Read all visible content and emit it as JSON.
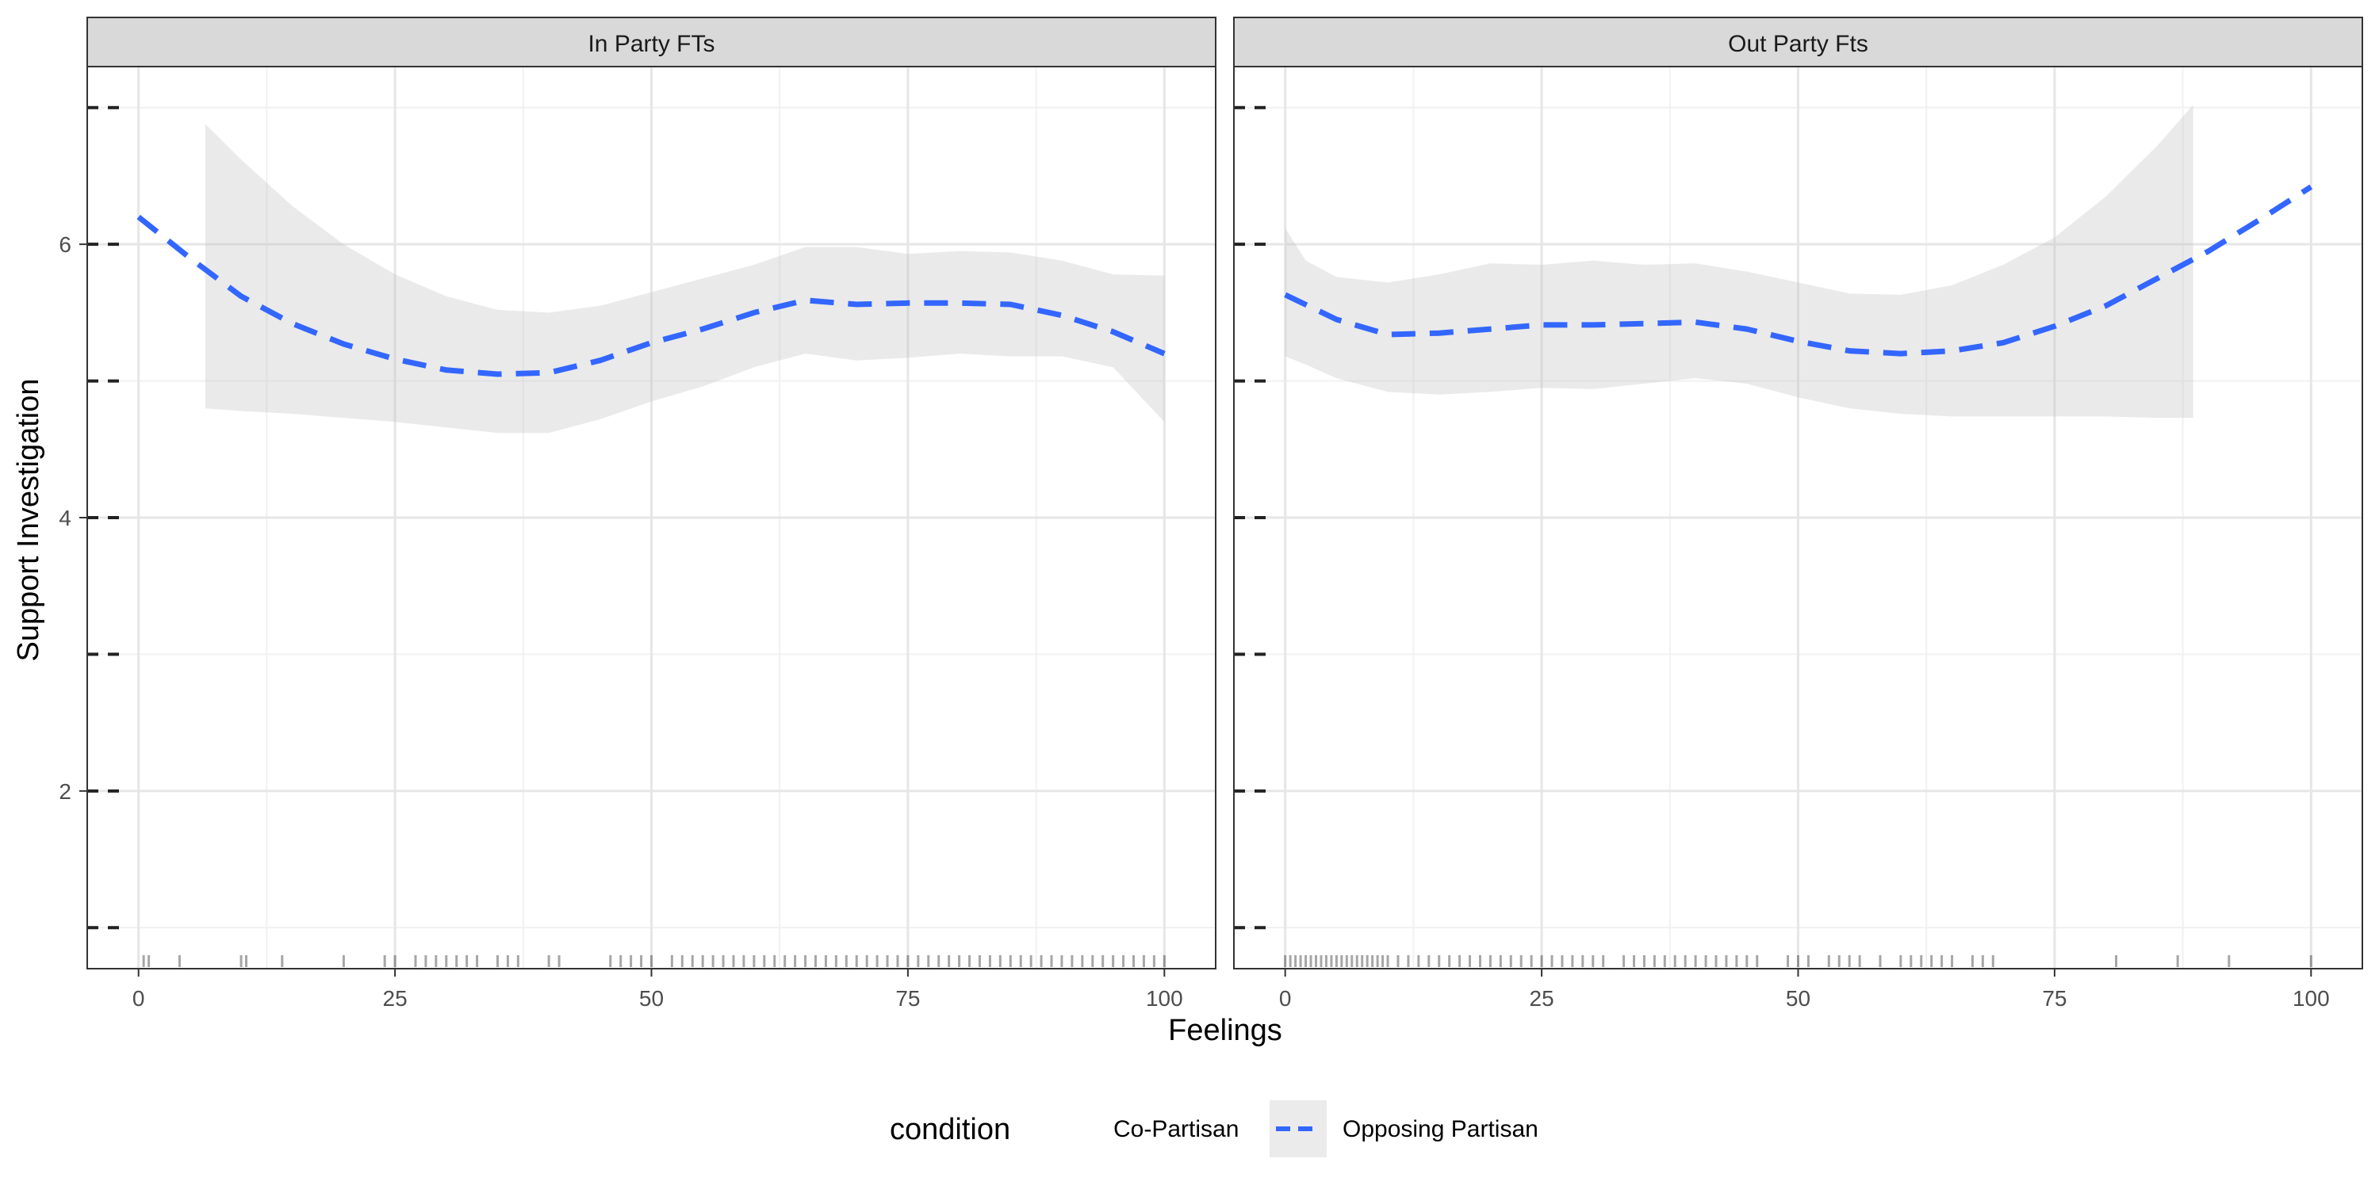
{
  "chart_data": {
    "type": "line",
    "panels": [
      {
        "strip_label": "In Party FTs",
        "series": [
          {
            "name": "Opposing Partisan",
            "color": "#3366FF",
            "line_style": "dashed",
            "x": [
              0,
              5,
              10,
              15,
              20,
              25,
              30,
              35,
              40,
              45,
              50,
              55,
              60,
              65,
              70,
              75,
              80,
              85,
              90,
              95,
              100
            ],
            "y": [
              6.2,
              5.9,
              5.62,
              5.42,
              5.27,
              5.16,
              5.08,
              5.05,
              5.06,
              5.15,
              5.28,
              5.38,
              5.5,
              5.59,
              5.56,
              5.57,
              5.57,
              5.56,
              5.48,
              5.36,
              5.2
            ]
          }
        ],
        "ribbon": {
          "x": [
            6.5,
            10,
            15,
            20,
            25,
            30,
            35,
            40,
            45,
            50,
            55,
            60,
            65,
            70,
            75,
            80,
            85,
            90,
            95,
            100
          ],
          "upper": [
            6.88,
            6.62,
            6.28,
            6.0,
            5.78,
            5.62,
            5.52,
            5.5,
            5.55,
            5.65,
            5.75,
            5.85,
            5.98,
            5.98,
            5.93,
            5.95,
            5.94,
            5.88,
            5.78,
            5.77
          ],
          "lower": [
            4.8,
            4.78,
            4.76,
            4.73,
            4.7,
            4.66,
            4.62,
            4.62,
            4.72,
            4.85,
            4.96,
            5.1,
            5.2,
            5.15,
            5.17,
            5.2,
            5.18,
            5.18,
            5.1,
            4.7
          ]
        },
        "rug_x": [
          0.5,
          1,
          4,
          10,
          10.5,
          14,
          20,
          24,
          25,
          27,
          28,
          29,
          30,
          31,
          32,
          33,
          35,
          36,
          37,
          40,
          41,
          46,
          47,
          48,
          49,
          50,
          52,
          53,
          54,
          55,
          56,
          57,
          58,
          59,
          60,
          61,
          62,
          63,
          64,
          65,
          66,
          67,
          68,
          69,
          70,
          71,
          72,
          73,
          74,
          75,
          76,
          77,
          78,
          79,
          80,
          81,
          82,
          83,
          84,
          85,
          86,
          87,
          88,
          89,
          90,
          91,
          92,
          93,
          94,
          95,
          96,
          97,
          98,
          99,
          100
        ]
      },
      {
        "strip_label": "Out Party Fts",
        "series": [
          {
            "name": "Opposing Partisan",
            "color": "#3366FF",
            "line_style": "dashed",
            "x": [
              0,
              5,
              10,
              15,
              20,
              25,
              30,
              35,
              40,
              45,
              50,
              55,
              60,
              65,
              70,
              75,
              80,
              85,
              90,
              95,
              100
            ],
            "y": [
              5.63,
              5.45,
              5.34,
              5.35,
              5.38,
              5.41,
              5.41,
              5.42,
              5.43,
              5.38,
              5.29,
              5.22,
              5.2,
              5.22,
              5.28,
              5.4,
              5.55,
              5.75,
              5.95,
              6.18,
              6.42
            ]
          }
        ],
        "ribbon": {
          "x": [
            0,
            2,
            5,
            10,
            15,
            20,
            25,
            30,
            35,
            40,
            45,
            50,
            55,
            60,
            65,
            70,
            75,
            80,
            85,
            88.5
          ],
          "upper": [
            6.12,
            5.88,
            5.76,
            5.72,
            5.78,
            5.86,
            5.85,
            5.88,
            5.85,
            5.86,
            5.8,
            5.72,
            5.64,
            5.63,
            5.7,
            5.85,
            6.05,
            6.35,
            6.72,
            7.02
          ],
          "lower": [
            5.18,
            5.12,
            5.02,
            4.92,
            4.9,
            4.92,
            4.95,
            4.94,
            4.98,
            5.02,
            4.98,
            4.88,
            4.8,
            4.76,
            4.74,
            4.74,
            4.74,
            4.74,
            4.73,
            4.73
          ]
        },
        "rug_x": [
          0,
          0.5,
          1,
          1.5,
          2,
          2.5,
          3,
          3.5,
          4,
          4.5,
          5,
          5.5,
          6,
          6.5,
          7,
          7.5,
          8,
          8.5,
          9,
          9.5,
          10,
          11,
          12,
          13,
          14,
          15,
          16,
          17,
          18,
          19,
          20,
          21,
          22,
          23,
          24,
          25,
          26,
          27,
          28,
          29,
          30,
          31,
          33,
          34,
          35,
          36,
          37,
          38,
          39,
          40,
          41,
          42,
          43,
          44,
          45,
          46,
          49,
          50,
          51,
          53,
          54,
          55,
          56,
          58,
          60,
          61,
          62,
          63,
          64,
          65,
          67,
          68,
          69,
          81,
          87,
          92,
          100
        ]
      }
    ],
    "x_ticks": [
      "0",
      "25",
      "50",
      "75",
      "100"
    ],
    "x_tick_values": [
      0,
      25,
      50,
      75,
      100
    ],
    "y_ticks": [
      "2",
      "4",
      "6"
    ],
    "y_tick_values": [
      2,
      4,
      6
    ],
    "y_minor_tick_values": [
      1,
      3,
      5,
      7
    ],
    "xlim": [
      -5,
      105
    ],
    "ylim": [
      0.7,
      7.3
    ],
    "xlabel": "Feelings",
    "ylabel": "Support Investigation",
    "legend": {
      "title": "condition",
      "placement": "bottom",
      "entries": [
        {
          "label": "Co-Partisan",
          "color": "#3366FF"
        },
        {
          "label": "Opposing Partisan",
          "color": "#3366FF"
        }
      ]
    },
    "grid": true
  }
}
